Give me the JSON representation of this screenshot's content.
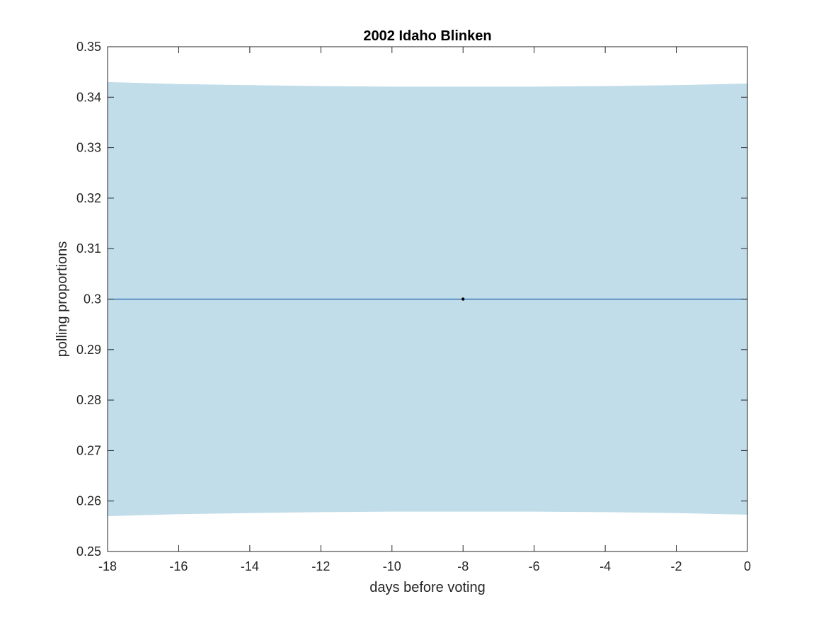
{
  "chart_data": {
    "type": "line",
    "title": "2002 Idaho Blinken",
    "xlabel": "days before voting",
    "ylabel": "polling proportions",
    "xlim": [
      -18,
      0
    ],
    "ylim": [
      0.25,
      0.35
    ],
    "x_ticks": [
      -18,
      -16,
      -14,
      -12,
      -10,
      -8,
      -6,
      -4,
      -2,
      0
    ],
    "x_tick_labels": [
      "-18",
      "-16",
      "-14",
      "-12",
      "-10",
      "-8",
      "-6",
      "-4",
      "-2",
      "0"
    ],
    "y_ticks": [
      0.25,
      0.26,
      0.27,
      0.28,
      0.29,
      0.3,
      0.31,
      0.32,
      0.33,
      0.34,
      0.35
    ],
    "y_tick_labels": [
      "0.25",
      "0.26",
      "0.27",
      "0.28",
      "0.29",
      "0.3",
      "0.31",
      "0.32",
      "0.33",
      "0.34",
      "0.35"
    ],
    "grid": false,
    "legend": "none",
    "band": {
      "x": [
        -18,
        -16,
        -14,
        -12,
        -10,
        -8,
        -6,
        -4,
        -2,
        0
      ],
      "upper": [
        0.343,
        0.3426,
        0.3424,
        0.3422,
        0.3421,
        0.3421,
        0.3421,
        0.3422,
        0.3424,
        0.3427
      ],
      "lower": [
        0.257,
        0.2574,
        0.2576,
        0.2578,
        0.2579,
        0.2579,
        0.2579,
        0.2578,
        0.2576,
        0.2573
      ],
      "color": "#c1ddea"
    },
    "series": [
      {
        "x": [
          -18,
          0
        ],
        "values": [
          0.3,
          0.3
        ],
        "color": "#1f63ad"
      }
    ],
    "points": [
      {
        "x": -8,
        "y": 0.3,
        "color": "#000000"
      }
    ]
  }
}
